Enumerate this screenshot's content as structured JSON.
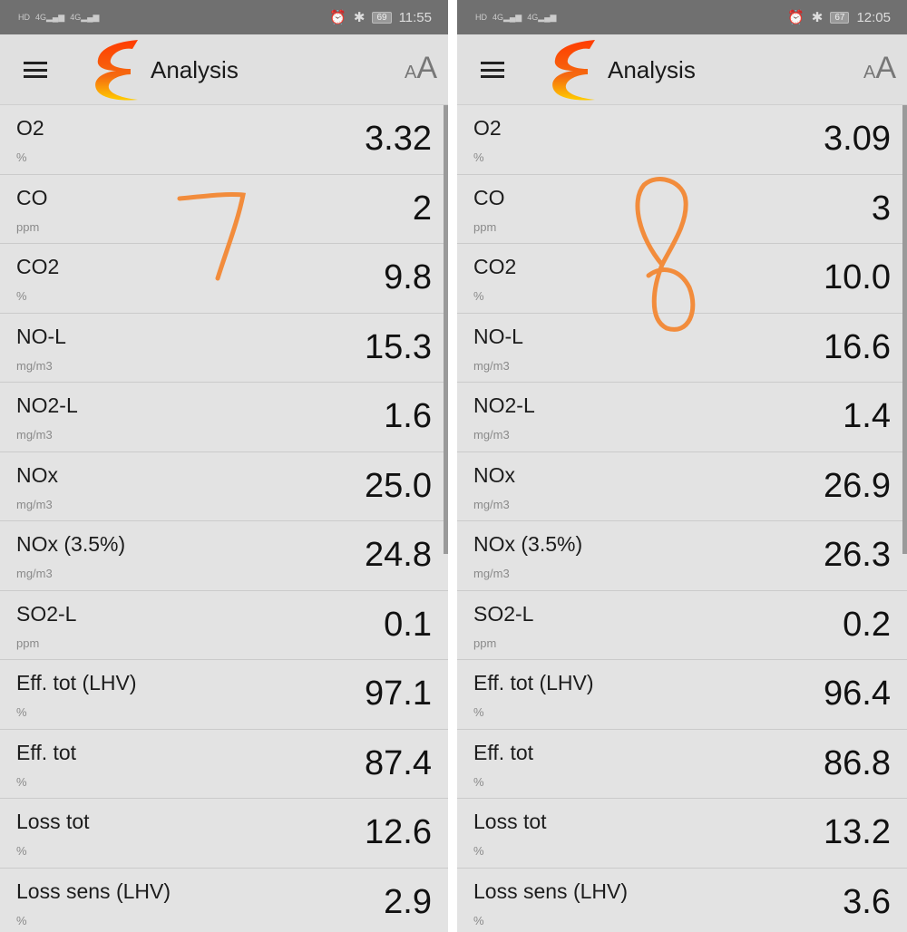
{
  "app": {
    "title": "Analysis",
    "font_size_button": {
      "small": "A",
      "large": "A"
    },
    "accent_color": "#f26a1b"
  },
  "panels": [
    {
      "status": {
        "left_icons": [
          "hd-icon",
          "signal-4g-icon",
          "signal-4g-icon",
          "sim-icon"
        ],
        "right_icons": [
          "alarm-icon",
          "bluetooth-icon"
        ],
        "battery": "69",
        "time": "11:55"
      },
      "annotation": "7",
      "rows": [
        {
          "label": "O2",
          "unit": "%",
          "value": "3.32"
        },
        {
          "label": "CO",
          "unit": "ppm",
          "value": "2"
        },
        {
          "label": "CO2",
          "unit": "%",
          "value": "9.8"
        },
        {
          "label": "NO-L",
          "unit": "mg/m3",
          "value": "15.3"
        },
        {
          "label": "NO2-L",
          "unit": "mg/m3",
          "value": "1.6"
        },
        {
          "label": "NOx",
          "unit": "mg/m3",
          "value": "25.0"
        },
        {
          "label": "NOx (3.5%)",
          "unit": "mg/m3",
          "value": "24.8"
        },
        {
          "label": "SO2-L",
          "unit": "ppm",
          "value": "0.1"
        },
        {
          "label": "Eff. tot (LHV)",
          "unit": "%",
          "value": "97.1"
        },
        {
          "label": "Eff. tot",
          "unit": "%",
          "value": "87.4"
        },
        {
          "label": "Loss tot",
          "unit": "%",
          "value": "12.6"
        },
        {
          "label": "Loss sens (LHV)",
          "unit": "%",
          "value": "2.9"
        }
      ]
    },
    {
      "status": {
        "left_icons": [
          "hd-icon",
          "signal-4g-icon",
          "signal-4g-icon",
          "app-icon",
          "sim-icon"
        ],
        "right_icons": [
          "alarm-icon",
          "bluetooth-icon"
        ],
        "battery": "67",
        "time": "12:05"
      },
      "annotation": "8",
      "rows": [
        {
          "label": "O2",
          "unit": "%",
          "value": "3.09"
        },
        {
          "label": "CO",
          "unit": "ppm",
          "value": "3"
        },
        {
          "label": "CO2",
          "unit": "%",
          "value": "10.0"
        },
        {
          "label": "NO-L",
          "unit": "mg/m3",
          "value": "16.6"
        },
        {
          "label": "NO2-L",
          "unit": "mg/m3",
          "value": "1.4"
        },
        {
          "label": "NOx",
          "unit": "mg/m3",
          "value": "26.9"
        },
        {
          "label": "NOx (3.5%)",
          "unit": "mg/m3",
          "value": "26.3"
        },
        {
          "label": "SO2-L",
          "unit": "ppm",
          "value": "0.2"
        },
        {
          "label": "Eff. tot (LHV)",
          "unit": "%",
          "value": "96.4"
        },
        {
          "label": "Eff. tot",
          "unit": "%",
          "value": "86.8"
        },
        {
          "label": "Loss tot",
          "unit": "%",
          "value": "13.2"
        },
        {
          "label": "Loss sens (LHV)",
          "unit": "%",
          "value": "3.6"
        }
      ]
    }
  ]
}
